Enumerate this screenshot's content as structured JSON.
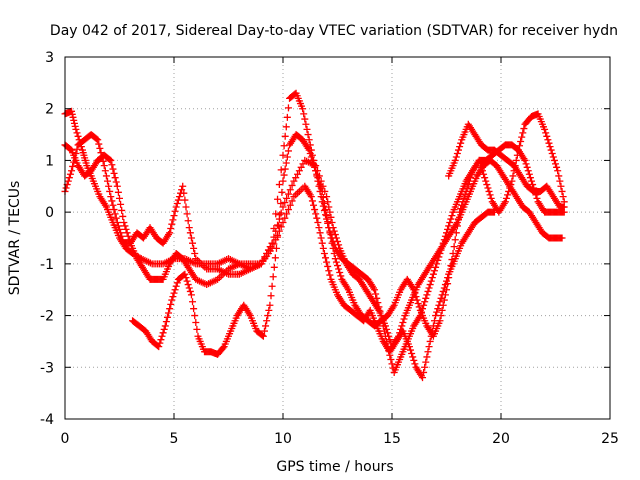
{
  "chart_data": {
    "type": "scatter",
    "title": "Day 042 of 2017, Sidereal Day-to-day VTEC variation (SDTVAR) for receiver hydn",
    "xlabel": "GPS time / hours",
    "ylabel": "SDTVAR / TECUs",
    "xlim": [
      0,
      25
    ],
    "ylim": [
      -4,
      3
    ],
    "xticks": [
      "0",
      "5",
      "10",
      "15",
      "20",
      "25"
    ],
    "yticks": [
      "-4",
      "-3",
      "-2",
      "-1",
      "0",
      "1",
      "2",
      "3"
    ],
    "grid": true,
    "marker": "+",
    "color": "#ff0000",
    "series": [
      {
        "x": [
          0.0,
          0.3,
          0.5,
          0.8,
          1.0,
          1.3,
          1.6,
          1.9,
          2.2,
          2.5,
          2.8,
          3.1,
          3.5,
          4.0,
          4.5,
          5.0,
          5.5,
          6.0,
          6.5,
          7.0,
          7.5,
          8.0,
          8.5,
          9.0,
          9.5,
          10.0,
          10.3,
          10.6,
          10.9,
          11.2,
          11.5,
          11.8,
          12.1,
          12.4,
          12.7,
          13.0,
          13.3,
          13.6,
          13.9,
          14.2,
          14.5,
          14.8,
          15.1,
          15.4,
          15.7,
          16.0,
          16.3,
          16.6,
          16.9,
          17.2,
          17.5,
          17.8,
          18.1,
          18.4,
          18.7,
          19.0,
          19.3,
          19.6,
          19.9,
          20.2,
          20.5,
          20.8,
          21.1,
          21.4,
          21.7,
          22.0,
          22.3,
          22.6,
          22.9
        ],
        "y": [
          1.9,
          1.95,
          1.6,
          1.2,
          0.9,
          0.6,
          0.3,
          0.1,
          -0.2,
          -0.5,
          -0.7,
          -0.8,
          -0.9,
          -1.0,
          -1.0,
          -0.9,
          -0.9,
          -1.0,
          -1.0,
          -1.0,
          -0.9,
          -1.0,
          -1.1,
          -1.0,
          -0.6,
          1.1,
          2.2,
          2.3,
          2.0,
          1.4,
          0.8,
          0.2,
          -0.3,
          -0.7,
          -0.9,
          -1.0,
          -1.1,
          -1.2,
          -1.3,
          -1.5,
          -2.0,
          -2.6,
          -3.1,
          -2.8,
          -2.5,
          -2.2,
          -2.0,
          -1.6,
          -1.2,
          -0.8,
          -0.4,
          0.0,
          0.3,
          0.6,
          0.8,
          1.0,
          1.0,
          1.1,
          1.2,
          1.3,
          1.3,
          1.2,
          1.0,
          0.6,
          0.2,
          0.0,
          0.0,
          0.0,
          0.0
        ]
      },
      {
        "x": [
          0.0,
          0.3,
          0.6,
          0.9,
          1.2,
          1.5,
          1.8,
          2.1,
          2.4,
          2.7,
          3.0,
          3.3,
          3.6,
          3.9,
          4.2,
          4.5,
          4.8,
          5.1,
          5.4,
          5.7,
          6.0,
          6.5,
          7.0,
          7.5,
          8.0,
          8.5,
          9.0,
          9.5,
          10.0,
          10.5,
          11.0,
          11.5,
          12.0,
          12.3,
          12.6,
          12.9,
          13.2,
          13.5,
          13.8,
          14.1,
          14.4,
          14.7,
          15.0,
          15.3,
          15.6,
          15.9,
          16.2,
          16.5,
          16.8,
          17.1,
          17.4,
          17.7,
          18.0,
          18.3,
          18.6,
          18.9,
          19.2,
          19.5,
          19.8,
          20.1,
          20.4,
          20.7,
          21.0,
          21.3,
          21.6,
          21.9,
          22.2,
          22.5,
          22.8
        ],
        "y": [
          1.3,
          1.2,
          0.9,
          0.7,
          0.8,
          1.0,
          1.1,
          1.0,
          0.5,
          -0.2,
          -0.6,
          -0.9,
          -1.1,
          -1.3,
          -1.3,
          -1.3,
          -1.0,
          -0.8,
          -0.9,
          -1.1,
          -1.3,
          -1.4,
          -1.3,
          -1.1,
          -1.0,
          -1.0,
          -1.0,
          -0.6,
          0.1,
          0.6,
          1.0,
          0.9,
          0.3,
          -0.3,
          -0.7,
          -1.0,
          -1.2,
          -1.3,
          -1.5,
          -1.7,
          -1.9,
          -2.2,
          -2.6,
          -2.4,
          -2.0,
          -1.7,
          -1.4,
          -1.2,
          -1.0,
          -0.8,
          -0.6,
          -0.4,
          -0.2,
          0.1,
          0.4,
          0.7,
          0.9,
          1.0,
          0.9,
          0.7,
          0.5,
          0.3,
          0.1,
          0.0,
          -0.2,
          -0.4,
          -0.5,
          -0.5,
          -0.5
        ]
      },
      {
        "x": [
          0.0,
          0.3,
          0.6,
          0.9,
          1.2,
          1.5,
          1.8,
          2.1,
          2.4,
          2.7,
          3.0,
          3.3,
          3.6,
          3.9,
          4.2,
          4.5,
          4.8,
          5.1,
          5.4,
          5.7,
          6.0,
          6.5,
          7.0,
          7.5,
          8.0,
          8.5,
          9.0,
          9.5,
          10.0,
          10.5,
          11.0,
          11.3,
          11.6,
          11.9,
          12.2,
          12.5,
          12.8,
          13.1,
          13.4,
          13.7,
          14.0,
          14.3,
          14.6,
          14.9,
          15.2,
          15.5,
          15.8,
          16.1,
          16.4,
          16.7,
          17.0,
          17.3,
          17.6,
          17.9,
          18.2,
          18.5,
          18.8,
          19.1,
          19.4,
          19.7
        ],
        "y": [
          0.4,
          0.8,
          1.3,
          1.4,
          1.5,
          1.4,
          0.9,
          0.3,
          -0.2,
          -0.6,
          -0.6,
          -0.4,
          -0.5,
          -0.3,
          -0.5,
          -0.6,
          -0.4,
          0.1,
          0.5,
          -0.3,
          -0.9,
          -1.1,
          -1.1,
          -1.2,
          -1.2,
          -1.1,
          -1.0,
          -0.7,
          -0.2,
          0.3,
          0.5,
          0.3,
          -0.2,
          -0.8,
          -1.3,
          -1.6,
          -1.8,
          -1.9,
          -2.0,
          -2.1,
          -1.9,
          -2.2,
          -2.5,
          -2.7,
          -2.5,
          -2.3,
          -2.6,
          -3.0,
          -3.2,
          -2.6,
          -2.0,
          -1.6,
          -1.2,
          -0.9,
          -0.6,
          -0.4,
          -0.2,
          -0.1,
          0.0,
          0.0
        ]
      },
      {
        "x": [
          3.1,
          3.4,
          3.7,
          4.0,
          4.3,
          4.6,
          4.9,
          5.2,
          5.5,
          5.8,
          6.1,
          6.4,
          6.7,
          7.0,
          7.3,
          7.6,
          7.9,
          8.2,
          8.5,
          8.8,
          9.1,
          9.4,
          9.7,
          10.0,
          10.3,
          10.6,
          10.9,
          11.2,
          11.5,
          11.8,
          12.1,
          12.4,
          12.7,
          13.0,
          13.3,
          13.6,
          13.9,
          14.2,
          14.5,
          14.8,
          15.1,
          15.4,
          15.7,
          16.0,
          16.3,
          16.6,
          16.9,
          17.2,
          17.5,
          17.8,
          18.1,
          18.4,
          18.7,
          19.0,
          19.3,
          19.6,
          19.9,
          20.2,
          20.5,
          20.8,
          21.1,
          21.4,
          21.7,
          22.0,
          22.3,
          22.6,
          22.9
        ],
        "y": [
          -2.1,
          -2.2,
          -2.3,
          -2.5,
          -2.6,
          -2.2,
          -1.7,
          -1.3,
          -1.2,
          -1.6,
          -2.4,
          -2.7,
          -2.7,
          -2.75,
          -2.6,
          -2.3,
          -2.0,
          -1.8,
          -2.0,
          -2.3,
          -2.4,
          -1.8,
          -0.7,
          0.6,
          1.3,
          1.5,
          1.4,
          1.2,
          0.8,
          0.4,
          -0.3,
          -0.9,
          -1.3,
          -1.5,
          -1.8,
          -2.0,
          -2.1,
          -2.2,
          -2.1,
          -2.0,
          -1.8,
          -1.5,
          -1.3,
          -1.5,
          -1.9,
          -2.2,
          -2.4,
          -2.1,
          -1.5,
          -0.8,
          0.0,
          0.4,
          0.8,
          1.0,
          0.6,
          0.2,
          0.0,
          0.2,
          0.6,
          1.2,
          1.7,
          1.85,
          1.9,
          1.6,
          1.2,
          0.8,
          0.2
        ]
      },
      {
        "x": [
          17.6,
          17.9,
          18.2,
          18.5,
          18.8,
          19.1,
          19.4,
          19.7,
          20.0,
          20.3,
          20.6,
          20.9,
          21.2,
          21.5,
          21.8,
          22.1,
          22.4,
          22.7,
          22.9
        ],
        "y": [
          0.7,
          1.0,
          1.4,
          1.7,
          1.5,
          1.3,
          1.2,
          1.2,
          1.1,
          1.0,
          0.9,
          0.7,
          0.5,
          0.4,
          0.4,
          0.5,
          0.3,
          0.1,
          0.1
        ]
      }
    ]
  }
}
